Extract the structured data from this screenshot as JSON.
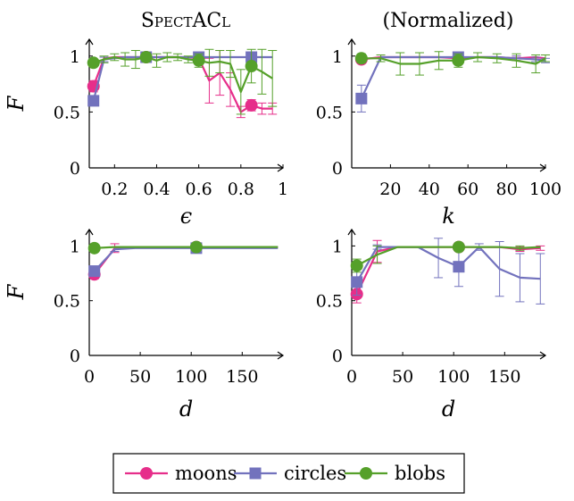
{
  "colors": {
    "moons": "#e62e8a",
    "circles": "#7272bd",
    "blobs": "#55a02a"
  },
  "legend": [
    {
      "key": "moons",
      "label": "moons",
      "marker": "circle"
    },
    {
      "key": "circles",
      "label": "circles",
      "marker": "square"
    },
    {
      "key": "blobs",
      "label": "blobs",
      "marker": "circle"
    }
  ],
  "chart_data": [
    {
      "type": "line",
      "title": "SpectACl",
      "xlabel": "ϵ",
      "ylabel": "F",
      "xlim": [
        0.08,
        1.0
      ],
      "ylim": [
        0,
        1.15
      ],
      "xticks": [
        0.2,
        0.4,
        0.6,
        0.8,
        1
      ],
      "xtick_labels": [
        "0.2",
        "0.4",
        "0.6",
        "0.8",
        "1"
      ],
      "yticks": [
        0,
        0.5,
        1
      ],
      "ytick_labels": [
        "0",
        "0.5",
        "1"
      ],
      "marker_x": [
        0.1,
        0.35,
        0.6,
        0.85
      ],
      "series": [
        {
          "name": "moons",
          "x": [
            0.1,
            0.15,
            0.2,
            0.25,
            0.3,
            0.35,
            0.4,
            0.45,
            0.5,
            0.55,
            0.6,
            0.65,
            0.7,
            0.75,
            0.8,
            0.85,
            0.9,
            0.95
          ],
          "y": [
            0.73,
            0.98,
            0.99,
            0.99,
            0.99,
            0.99,
            0.99,
            0.99,
            0.99,
            0.99,
            0.98,
            0.78,
            0.85,
            0.7,
            0.5,
            0.56,
            0.53,
            0.53
          ],
          "err": [
            0.05,
            0.01,
            0.01,
            0.01,
            0.01,
            0.01,
            0.01,
            0.01,
            0.01,
            0.01,
            0.02,
            0.2,
            0.2,
            0.15,
            0.05,
            0.05,
            0.05,
            0.05
          ]
        },
        {
          "name": "circles",
          "x": [
            0.1,
            0.15,
            0.2,
            0.25,
            0.3,
            0.35,
            0.4,
            0.45,
            0.5,
            0.55,
            0.6,
            0.65,
            0.7,
            0.75,
            0.8,
            0.85,
            0.9,
            0.95
          ],
          "y": [
            0.6,
            0.97,
            0.98,
            0.99,
            0.99,
            0.99,
            0.99,
            0.99,
            0.99,
            0.99,
            0.99,
            0.99,
            0.99,
            0.99,
            0.99,
            0.99,
            0.99,
            0.99
          ],
          "err": [
            0.04,
            0.02,
            0.01,
            0.01,
            0.01,
            0.01,
            0.01,
            0.01,
            0.01,
            0.01,
            0.01,
            0.01,
            0.01,
            0.01,
            0.01,
            0.01,
            0.01,
            0.01
          ]
        },
        {
          "name": "blobs",
          "x": [
            0.1,
            0.15,
            0.2,
            0.25,
            0.3,
            0.35,
            0.4,
            0.45,
            0.5,
            0.55,
            0.6,
            0.65,
            0.7,
            0.75,
            0.8,
            0.85,
            0.9,
            0.95
          ],
          "y": [
            0.94,
            0.97,
            0.99,
            0.97,
            0.97,
            0.99,
            0.96,
            0.99,
            0.99,
            0.97,
            0.96,
            0.94,
            0.95,
            0.93,
            0.68,
            0.91,
            0.86,
            0.8
          ],
          "err": [
            0.03,
            0.03,
            0.03,
            0.06,
            0.08,
            0.04,
            0.06,
            0.04,
            0.03,
            0.03,
            0.06,
            0.12,
            0.1,
            0.12,
            0.2,
            0.15,
            0.2,
            0.25
          ]
        }
      ]
    },
    {
      "type": "line",
      "title": "(Normalized)",
      "xlabel": "k",
      "ylabel": "",
      "xlim": [
        0,
        100
      ],
      "ylim": [
        0,
        1.15
      ],
      "xticks": [
        20,
        40,
        60,
        80,
        100
      ],
      "xtick_labels": [
        "20",
        "40",
        "60",
        "80",
        "100"
      ],
      "yticks": [
        0,
        0.5,
        1
      ],
      "ytick_labels": [
        "0",
        "0.5",
        "1"
      ],
      "marker_x": [
        5,
        55
      ],
      "series": [
        {
          "name": "moons",
          "x": [
            5,
            15,
            25,
            35,
            45,
            55,
            65,
            75,
            85,
            95,
            100
          ],
          "y": [
            0.97,
            0.99,
            0.99,
            0.99,
            0.99,
            0.98,
            0.99,
            0.99,
            0.98,
            0.99,
            0.98
          ],
          "err": [
            0.03,
            0.01,
            0.01,
            0.01,
            0.01,
            0.02,
            0.01,
            0.01,
            0.02,
            0.01,
            0.01
          ]
        },
        {
          "name": "circles",
          "x": [
            5,
            15,
            25,
            35,
            45,
            55,
            65,
            75,
            85,
            95,
            100
          ],
          "y": [
            0.62,
            0.99,
            0.99,
            0.99,
            0.99,
            0.99,
            0.99,
            0.99,
            0.98,
            0.97,
            0.96
          ],
          "err": [
            0.12,
            0.01,
            0.01,
            0.01,
            0.01,
            0.01,
            0.01,
            0.01,
            0.02,
            0.02,
            0.02
          ]
        },
        {
          "name": "blobs",
          "x": [
            5,
            15,
            25,
            35,
            45,
            55,
            65,
            75,
            85,
            95,
            100
          ],
          "y": [
            0.98,
            0.98,
            0.93,
            0.93,
            0.96,
            0.96,
            0.99,
            0.98,
            0.96,
            0.93,
            0.98
          ],
          "err": [
            0.04,
            0.03,
            0.1,
            0.1,
            0.08,
            0.06,
            0.04,
            0.04,
            0.06,
            0.08,
            0.03
          ]
        }
      ]
    },
    {
      "type": "line",
      "title": "",
      "xlabel": "d",
      "ylabel": "F",
      "xlim": [
        0,
        190
      ],
      "ylim": [
        0,
        1.15
      ],
      "xticks": [
        0,
        50,
        100,
        150
      ],
      "xtick_labels": [
        "0",
        "50",
        "100",
        "150"
      ],
      "yticks": [
        0,
        0.5,
        1
      ],
      "ytick_labels": [
        "0",
        "0.5",
        "1"
      ],
      "marker_x": [
        5,
        105
      ],
      "series": [
        {
          "name": "moons",
          "x": [
            5,
            25,
            45,
            65,
            85,
            105,
            125,
            145,
            165,
            185
          ],
          "y": [
            0.74,
            0.98,
            0.99,
            0.99,
            0.99,
            0.99,
            0.99,
            0.99,
            0.99,
            0.99
          ],
          "err": [
            0.04,
            0.04,
            0.01,
            0.01,
            0.01,
            0.01,
            0.01,
            0.01,
            0.01,
            0.01
          ]
        },
        {
          "name": "circles",
          "x": [
            5,
            25,
            45,
            65,
            85,
            105,
            125,
            145,
            165,
            185
          ],
          "y": [
            0.77,
            0.97,
            0.98,
            0.98,
            0.98,
            0.98,
            0.98,
            0.98,
            0.98,
            0.98
          ],
          "err": [
            0.03,
            0.02,
            0.01,
            0.01,
            0.01,
            0.01,
            0.01,
            0.01,
            0.01,
            0.01
          ]
        },
        {
          "name": "blobs",
          "x": [
            5,
            25,
            45,
            65,
            85,
            105,
            125,
            145,
            165,
            185
          ],
          "y": [
            0.98,
            0.99,
            0.99,
            0.99,
            0.99,
            0.99,
            0.99,
            0.99,
            0.99,
            0.99
          ],
          "err": [
            0.01,
            0.01,
            0.01,
            0.01,
            0.01,
            0.01,
            0.01,
            0.01,
            0.01,
            0.01
          ]
        }
      ]
    },
    {
      "type": "line",
      "title": "",
      "xlabel": "d",
      "ylabel": "",
      "xlim": [
        0,
        190
      ],
      "ylim": [
        0,
        1.15
      ],
      "xticks": [
        0,
        50,
        100,
        150
      ],
      "xtick_labels": [
        "0",
        "50",
        "100",
        "150"
      ],
      "yticks": [
        0,
        0.5,
        1
      ],
      "ytick_labels": [
        "0",
        "0.5",
        "1"
      ],
      "marker_x": [
        5,
        105
      ],
      "series": [
        {
          "name": "moons",
          "x": [
            5,
            25,
            45,
            65,
            85,
            105,
            125,
            145,
            165,
            185
          ],
          "y": [
            0.56,
            0.95,
            0.99,
            0.99,
            0.99,
            0.99,
            0.99,
            0.99,
            0.97,
            0.98
          ],
          "err": [
            0.08,
            0.1,
            0.01,
            0.01,
            0.01,
            0.01,
            0.01,
            0.01,
            0.02,
            0.02
          ]
        },
        {
          "name": "circles",
          "x": [
            5,
            25,
            45,
            65,
            85,
            105,
            125,
            145,
            165,
            185
          ],
          "y": [
            0.67,
            0.99,
            0.99,
            0.99,
            0.89,
            0.81,
            0.99,
            0.79,
            0.71,
            0.7
          ],
          "err": [
            0.12,
            0.02,
            0.01,
            0.01,
            0.18,
            0.18,
            0.03,
            0.25,
            0.22,
            0.23
          ]
        },
        {
          "name": "blobs",
          "x": [
            5,
            25,
            45,
            65,
            85,
            105,
            125,
            145,
            165,
            185
          ],
          "y": [
            0.82,
            0.92,
            0.99,
            0.99,
            0.99,
            0.99,
            0.99,
            0.99,
            0.98,
            0.99
          ],
          "err": [
            0.06,
            0.08,
            0.01,
            0.01,
            0.01,
            0.01,
            0.01,
            0.01,
            0.02,
            0.01
          ]
        }
      ]
    }
  ]
}
